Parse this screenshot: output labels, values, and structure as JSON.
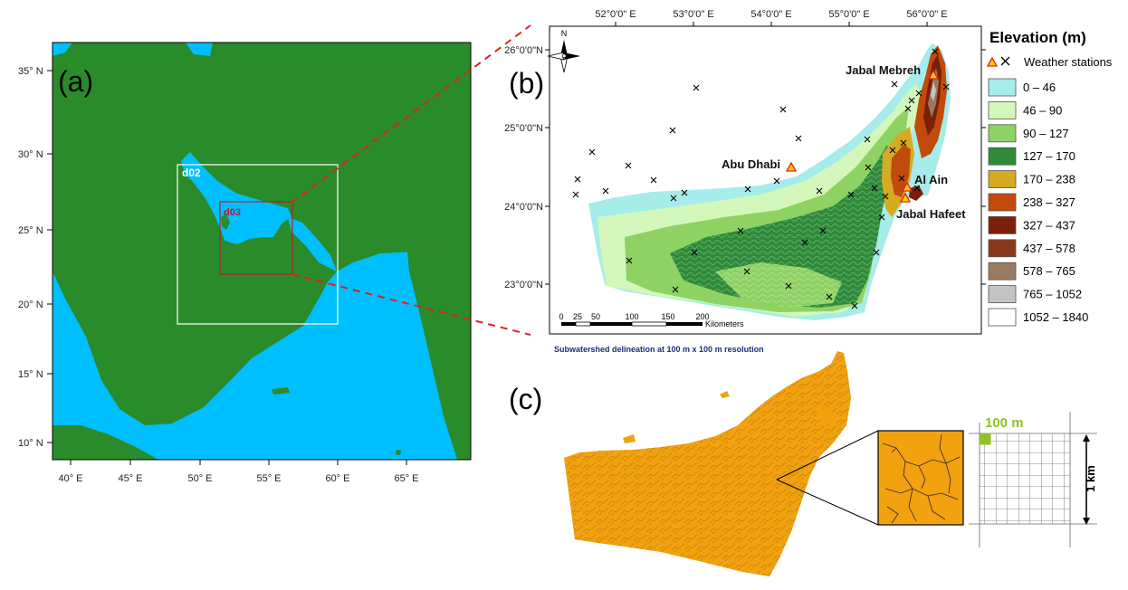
{
  "panel_a": {
    "label": "(a)",
    "lat_ticks": [
      "35° N",
      "30° N",
      "25° N",
      "20° N",
      "15° N",
      "10° N"
    ],
    "lon_ticks": [
      "40° E",
      "45° E",
      "50° E",
      "55° E",
      "60° E",
      "65° E"
    ],
    "domains": [
      {
        "name": "d02",
        "color": "#ffffff"
      },
      {
        "name": "d03",
        "color": "#b02030"
      }
    ],
    "colors": {
      "land": "#2a8b2a",
      "sea": "#00bfff"
    }
  },
  "panel_b": {
    "label": "(b)",
    "top_ticks": [
      "52°0'0\" E",
      "53°0'0\" E",
      "54°0'0\" E",
      "55°0'0\" E",
      "56°0'0\" E"
    ],
    "right_ticks": [
      "26°0'0\"N",
      "25°0'0\"N",
      "24°0'0\"N",
      "23°0'0\"N"
    ],
    "cities": [
      "Jabal Mebreh",
      "Abu Dhabi",
      "Al Ain",
      "Jabal Hafeet"
    ],
    "north": "N",
    "scalebar": {
      "labels": [
        "0",
        "25",
        "50",
        "100",
        "150",
        "200"
      ],
      "unit": "Kilometers"
    }
  },
  "legend": {
    "title": "Elevation (m)",
    "stations_label": "Weather stations",
    "classes": [
      {
        "label": "0 – 46",
        "color": "#a6ecea"
      },
      {
        "label": "46 – 90",
        "color": "#d3f7ba"
      },
      {
        "label": "90 – 127",
        "color": "#8fd264"
      },
      {
        "label": "127 – 170",
        "color": "#2e8b3a"
      },
      {
        "label": "170 – 238",
        "color": "#d4ab22"
      },
      {
        "label": "238 – 327",
        "color": "#c24a0b"
      },
      {
        "label": "327 – 437",
        "color": "#7a1f0a"
      },
      {
        "label": "437 – 578",
        "color": "#8a3a1a"
      },
      {
        "label": "578 – 765",
        "color": "#9a7a60"
      },
      {
        "label": "765 – 1052",
        "color": "#c4c4c4"
      },
      {
        "label": "1052 – 1840",
        "color": "#ffffff"
      }
    ]
  },
  "panel_c": {
    "label": "(c)",
    "caption": "Subwatershed delineation at 100 m x 100 m resolution",
    "cell_label": "100 m",
    "scale_label": "1 km",
    "colors": {
      "watershed": "#f2a10f",
      "cell": "#8fc31f"
    }
  }
}
